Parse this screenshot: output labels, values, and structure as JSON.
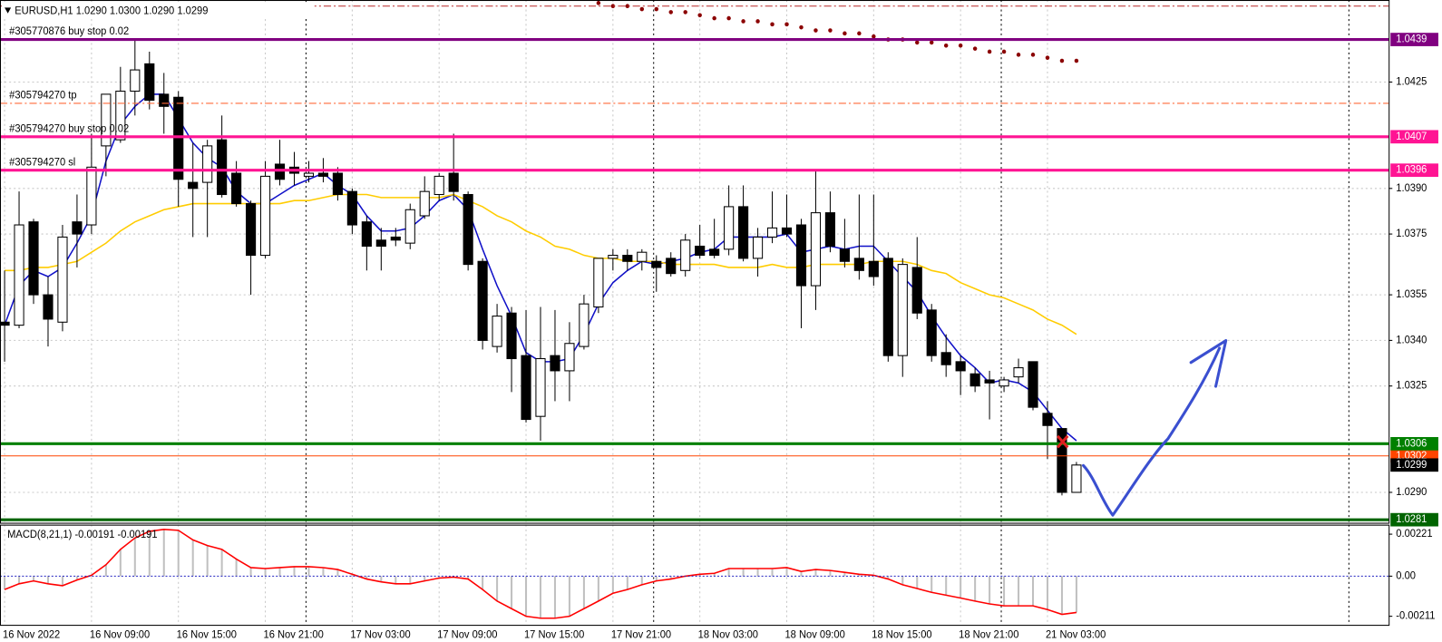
{
  "chart_data": [
    {
      "type": "candlestick",
      "title": "EURUSD,H1  1.0290 1.0300 1.0290 1.0299",
      "categories": [
        "16 Nov 2022",
        null,
        null,
        null,
        null,
        null,
        "16 Nov 09:00",
        null,
        null,
        null,
        null,
        null,
        "16 Nov 15:00",
        null,
        null,
        null,
        null,
        null,
        "16 Nov 21:00",
        null,
        null,
        null,
        null,
        null,
        "17 Nov 03:00",
        null,
        null,
        null,
        null,
        null,
        "17 Nov 09:00",
        null,
        null,
        null,
        null,
        null,
        "17 Nov 15:00",
        null,
        null,
        null,
        null,
        null,
        "17 Nov 21:00",
        null,
        null,
        null,
        null,
        null,
        "18 Nov 03:00",
        null,
        null,
        null,
        null,
        null,
        "18 Nov 09:00",
        null,
        null,
        null,
        null,
        null,
        "18 Nov 15:00",
        null,
        null,
        null,
        null,
        null,
        "18 Nov 21:00",
        null,
        null,
        null,
        null,
        null,
        "21 Nov 03:00",
        null,
        null
      ],
      "open": [
        1.0346,
        1.0345,
        1.0379,
        1.0355,
        1.0346,
        1.0379,
        1.0378,
        1.0404,
        1.0406,
        1.0422,
        1.0431,
        1.0421,
        1.042,
        1.0392,
        1.0392,
        1.0406,
        1.0395,
        1.0385,
        1.0368,
        1.0398,
        1.0397,
        1.0394,
        1.0395,
        1.0395,
        1.0389,
        1.0379,
        1.0373,
        1.0374,
        1.0372,
        1.0381,
        1.0388,
        1.0395,
        1.0388,
        1.0366,
        1.0338,
        1.0349,
        1.0335,
        1.0315,
        1.0335,
        1.033,
        1.0338,
        1.0351,
        1.0367,
        1.0368,
        1.0366,
        1.0366,
        1.0367,
        1.0363,
        1.0371,
        1.037,
        1.037,
        1.0384,
        1.0367,
        1.0374,
        1.0377,
        1.0378,
        1.0358,
        1.0382,
        1.037,
        1.0367,
        1.0366,
        1.0367,
        1.0335,
        1.0364,
        1.035,
        1.0336,
        1.0333,
        1.0329,
        1.0327,
        1.0325,
        1.0328,
        1.0333,
        1.0316,
        1.0311,
        1.029
      ],
      "high": [
        1.0363,
        1.0389,
        1.038,
        1.0361,
        1.0378,
        1.0388,
        1.0408,
        1.0421,
        1.043,
        1.0439,
        1.0435,
        1.0428,
        1.0422,
        1.0405,
        1.0406,
        1.0414,
        1.0399,
        1.0386,
        1.0399,
        1.0406,
        1.0402,
        1.0399,
        1.04,
        1.0397,
        1.039,
        1.0381,
        1.0377,
        1.0377,
        1.0385,
        1.0394,
        1.0395,
        1.0408,
        1.0389,
        1.0367,
        1.0352,
        1.0351,
        1.035,
        1.0351,
        1.035,
        1.0346,
        1.0355,
        1.0367,
        1.037,
        1.037,
        1.037,
        1.0368,
        1.0369,
        1.0375,
        1.0378,
        1.038,
        1.0391,
        1.0391,
        1.0377,
        1.0389,
        1.0388,
        1.038,
        1.0396,
        1.0389,
        1.038,
        1.0388,
        1.0388,
        1.0369,
        1.0367,
        1.0374,
        1.0352,
        1.0342,
        1.0335,
        1.0331,
        1.033,
        1.0328,
        1.0334,
        1.0333,
        1.032,
        1.0311,
        1.03
      ],
      "low": [
        1.0333,
        1.0344,
        1.0352,
        1.0338,
        1.0343,
        1.0364,
        1.0375,
        1.0394,
        1.0405,
        1.0414,
        1.0416,
        1.0408,
        1.0384,
        1.0374,
        1.0374,
        1.0387,
        1.0384,
        1.0355,
        1.0367,
        1.0391,
        1.0391,
        1.0392,
        1.0392,
        1.0386,
        1.0375,
        1.0363,
        1.0363,
        1.0371,
        1.037,
        1.038,
        1.0386,
        1.0386,
        1.0363,
        1.0337,
        1.0336,
        1.0323,
        1.0313,
        1.0307,
        1.032,
        1.032,
        1.0337,
        1.0349,
        1.0363,
        1.0363,
        1.0363,
        1.0356,
        1.0361,
        1.0361,
        1.0367,
        1.0367,
        1.0368,
        1.0366,
        1.0361,
        1.0372,
        1.0374,
        1.0344,
        1.035,
        1.0369,
        1.0364,
        1.036,
        1.0358,
        1.0333,
        1.0328,
        1.0347,
        1.0333,
        1.0328,
        1.0322,
        1.0323,
        1.0314,
        1.0323,
        1.0326,
        1.0317,
        1.0301,
        1.0289,
        1.029
      ],
      "close": [
        1.0345,
        1.0378,
        1.0355,
        1.0347,
        1.0374,
        1.0375,
        1.0397,
        1.0421,
        1.0422,
        1.0429,
        1.0419,
        1.0417,
        1.0393,
        1.039,
        1.0404,
        1.0388,
        1.0385,
        1.0368,
        1.0394,
        1.0393,
        1.0395,
        1.0395,
        1.0394,
        1.0388,
        1.0378,
        1.0371,
        1.0371,
        1.0373,
        1.0383,
        1.0389,
        1.0394,
        1.0389,
        1.0365,
        1.034,
        1.0348,
        1.0334,
        1.0314,
        1.0334,
        1.033,
        1.0339,
        1.0352,
        1.0367,
        1.0368,
        1.0366,
        1.0369,
        1.0364,
        1.0362,
        1.0373,
        1.0368,
        1.0368,
        1.0384,
        1.0367,
        1.0374,
        1.0377,
        1.0375,
        1.0358,
        1.0382,
        1.0371,
        1.0366,
        1.0363,
        1.0361,
        1.0335,
        1.0365,
        1.0349,
        1.0335,
        1.0332,
        1.033,
        1.0325,
        1.0326,
        1.0327,
        1.0331,
        1.0318,
        1.0312,
        1.029,
        1.0299
      ],
      "up_color": "#ffffff",
      "down_color": "#000000",
      "outline_color": "#000000",
      "lines": [
        {
          "color": "#1010c8",
          "values": [
            1.0345,
            1.0358,
            1.0363,
            1.0361,
            1.0364,
            1.0372,
            1.0381,
            1.0399,
            1.0411,
            1.0417,
            1.0421,
            1.0421,
            1.0413,
            1.0405,
            1.04,
            1.0397,
            1.0389,
            1.0385,
            1.0385,
            1.0388,
            1.0391,
            1.0393,
            1.0395,
            1.0391,
            1.0388,
            1.0381,
            1.0376,
            1.0376,
            1.0377,
            1.0381,
            1.0386,
            1.0388,
            1.0383,
            1.037,
            1.0358,
            1.0348,
            1.0336,
            1.0333,
            1.0333,
            1.0334,
            1.0342,
            1.0352,
            1.0359,
            1.0363,
            1.0366,
            1.0365,
            1.0366,
            1.0367,
            1.0369,
            1.037,
            1.0374,
            1.0374,
            1.0374,
            1.0374,
            1.0375,
            1.0369,
            1.037,
            1.0371,
            1.037,
            1.0371,
            1.0371,
            1.0366,
            1.0361,
            1.0356,
            1.0348,
            1.0341,
            1.0335,
            1.0331,
            1.0326,
            1.0327,
            1.0326,
            1.0323,
            1.0317,
            1.0311,
            1.0307
          ]
        },
        {
          "color": "#ffcc00",
          "values": [
            1.0363,
            1.0363,
            1.0364,
            1.0364,
            1.0365,
            1.0366,
            1.0369,
            1.0372,
            1.0376,
            1.0379,
            1.0381,
            1.0383,
            1.0384,
            1.0385,
            1.0385,
            1.0385,
            1.0385,
            1.0385,
            1.0385,
            1.0385,
            1.0386,
            1.0386,
            1.0387,
            1.0388,
            1.0388,
            1.0388,
            1.0387,
            1.0387,
            1.0387,
            1.0387,
            1.0387,
            1.0388,
            1.0386,
            1.0384,
            1.0381,
            1.0379,
            1.0376,
            1.0374,
            1.0371,
            1.037,
            1.0368,
            1.0367,
            1.0367,
            1.0366,
            1.0366,
            1.0366,
            1.0365,
            1.0365,
            1.0365,
            1.0365,
            1.0364,
            1.0364,
            1.0364,
            1.0365,
            1.0364,
            1.0364,
            1.0365,
            1.0365,
            1.0365,
            1.0365,
            1.0366,
            1.0366,
            1.0366,
            1.0365,
            1.0363,
            1.0362,
            1.0359,
            1.0357,
            1.0355,
            1.0354,
            1.0352,
            1.035,
            1.0347,
            1.0345,
            1.0342
          ]
        }
      ],
      "sar": {
        "color": "#8b0000",
        "values": [
          null,
          null,
          null,
          null,
          null,
          null,
          null,
          null,
          null,
          null,
          null,
          null,
          null,
          null,
          null,
          null,
          null,
          null,
          null,
          null,
          null,
          null,
          null,
          null,
          null,
          null,
          null,
          null,
          null,
          null,
          null,
          null,
          null,
          null,
          null,
          null,
          null,
          null,
          null,
          null,
          null,
          1.0451,
          1.045,
          1.045,
          1.0449,
          1.0449,
          1.0448,
          1.0448,
          1.0447,
          1.0446,
          1.0446,
          1.0445,
          1.0445,
          1.0444,
          1.0444,
          1.0443,
          1.0442,
          1.0442,
          1.0441,
          1.0441,
          1.044,
          1.0439,
          1.0439,
          1.0438,
          1.0438,
          1.0437,
          1.0437,
          1.0436,
          1.0435,
          1.0435,
          1.0434,
          1.0434,
          1.0433,
          1.0432,
          1.0432
        ]
      },
      "ylim": [
        1.028,
        1.0452
      ],
      "yticks": [
        1.0425,
        {
          "value": 1.039,
          "label": "1.0390"
        },
        1.0375,
        1.0355,
        {
          "value": 1.034,
          "label": "1.0340"
        },
        1.0325,
        {
          "value": 1.029,
          "label": "1.0290"
        }
      ],
      "grid": true,
      "levels": [
        {
          "price": 1.045,
          "color": "#c04040",
          "style": "dashed"
        },
        {
          "price": 1.0418,
          "color": "#ff6a3a",
          "style": "dashed"
        },
        {
          "price": 1.0439,
          "color": "#800080",
          "style": "thick"
        },
        {
          "price": 1.0407,
          "color": "#ff1493",
          "style": "thick"
        },
        {
          "price": 1.0396,
          "color": "#ff1493",
          "style": "thick"
        },
        {
          "price": 1.0302,
          "color": "#ff4500",
          "style": "thin"
        },
        {
          "price": 1.0306,
          "color": "#008000",
          "style": "thick"
        },
        {
          "price": 1.0299,
          "color": "#000000",
          "style": "label"
        },
        {
          "price": 1.0281,
          "color": "#006400",
          "style": "thick"
        }
      ],
      "orders": [
        {
          "text": "#305770876 buy stop 0.02",
          "price": 1.0439
        },
        {
          "text": "#305794270 tp",
          "price": 1.0418
        },
        {
          "text": "#305794270 buy stop 0.02",
          "price": 1.0407
        },
        {
          "text": "#305794270 sl",
          "price": 1.0396
        }
      ]
    },
    {
      "type": "macd",
      "title": "MACD(8,21,1) -0.00191 -0.00191",
      "values": [
        -0.0007,
        -0.0004,
        -0.00025,
        -0.0004,
        -0.0005,
        -0.0002,
        5e-05,
        0.0006,
        0.00141,
        0.00201,
        0.00236,
        0.00246,
        0.00241,
        0.00191,
        0.00161,
        0.00141,
        0.0009,
        0.00045,
        0.0004,
        0.00045,
        0.0005,
        0.0005,
        0.00045,
        0.00035,
        0.0001,
        -0.00015,
        -0.0003,
        -0.0004,
        -0.0004,
        -0.00025,
        -0.0001,
        -5e-05,
        -0.00015,
        -0.0007,
        -0.00131,
        -0.00171,
        -0.00211,
        -0.00221,
        -0.00221,
        -0.00211,
        -0.00171,
        -0.00131,
        -0.0009,
        -0.0007,
        -0.00045,
        -0.00025,
        -0.00015,
        0,
        0.0001,
        0.00015,
        0.0004,
        0.0004,
        0.0004,
        0.0004,
        0.00045,
        0.00025,
        0.00035,
        0.0003,
        0.0002,
        0.0001,
        5e-05,
        -0.00015,
        -0.00045,
        -0.00065,
        -0.00085,
        -0.001,
        -0.00115,
        -0.00131,
        -0.00146,
        -0.00156,
        -0.00156,
        -0.00156,
        -0.00176,
        -0.00201,
        -0.00191
      ],
      "bar_color": "#c0c0c0",
      "line_color": "#ff0000",
      "zero_color": "#2020c0",
      "ylim": [
        -0.00256,
        0.00271
      ],
      "yticks": [
        0.00221,
        {
          "value": 0,
          "label": "0.00"
        },
        -0.00211
      ]
    }
  ]
}
